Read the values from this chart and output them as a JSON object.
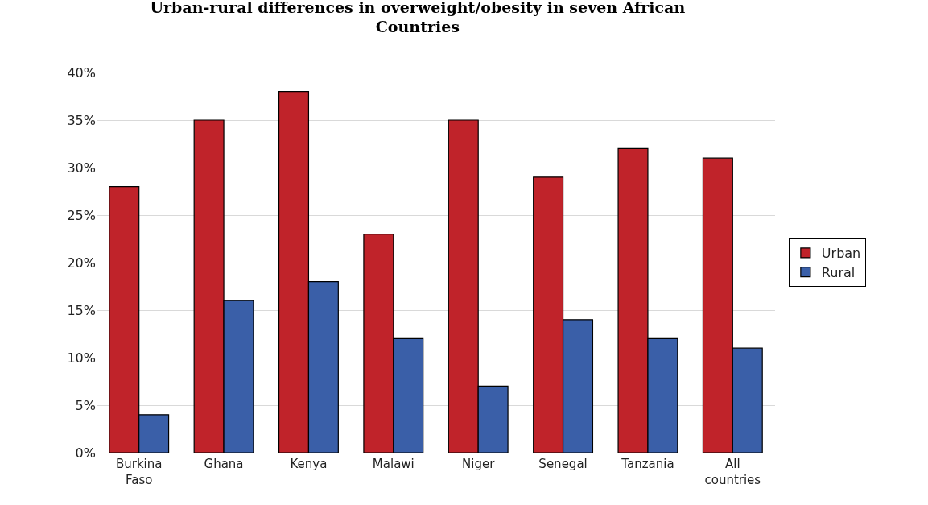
{
  "chart_data": {
    "type": "bar",
    "title": "Urban-rural differences in overweight/obesity in seven African Countries",
    "categories": [
      "Burkina Faso",
      "Ghana",
      "Kenya",
      "Malawi",
      "Niger",
      "Senegal",
      "Tanzania",
      "All countries"
    ],
    "series": [
      {
        "name": "Urban",
        "color": "#c0232a",
        "values": [
          28,
          35,
          38,
          23,
          35,
          29,
          32,
          31
        ]
      },
      {
        "name": "Rural",
        "color": "#3a5fa8",
        "values": [
          4,
          16,
          18,
          12,
          7,
          14,
          12,
          11
        ]
      }
    ],
    "ylim": [
      0,
      40
    ],
    "yticks": [
      {
        "value": 0,
        "label": "0%"
      },
      {
        "value": 5,
        "label": "5%"
      },
      {
        "value": 10,
        "label": "10%"
      },
      {
        "value": 15,
        "label": "15%"
      },
      {
        "value": 20,
        "label": "20%"
      },
      {
        "value": 25,
        "label": "25%"
      },
      {
        "value": 30,
        "label": "30%"
      },
      {
        "value": 35,
        "label": "35%"
      },
      {
        "value": 40,
        "label": "40%"
      }
    ],
    "grid": "y",
    "legend": "right"
  }
}
